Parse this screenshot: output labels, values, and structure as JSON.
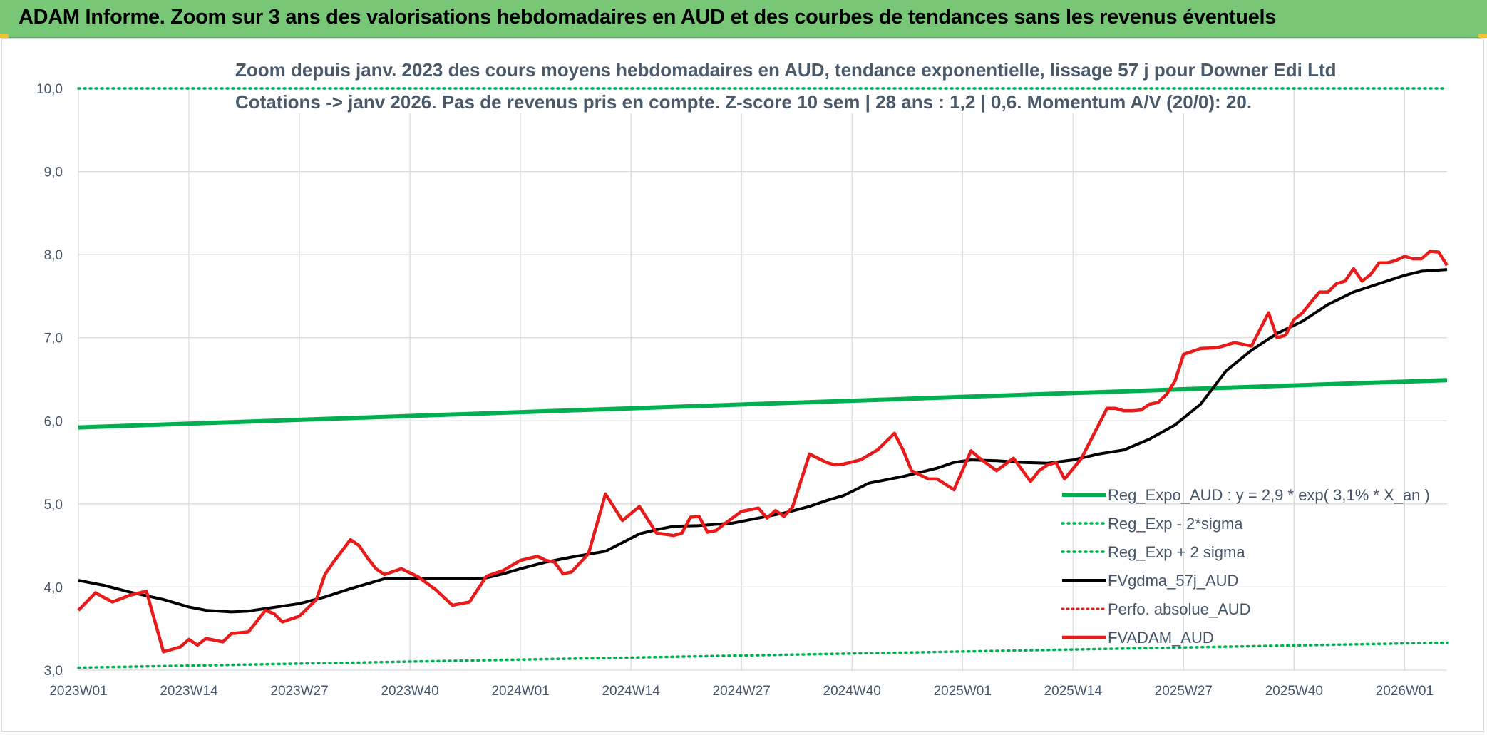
{
  "header": {
    "title": "ADAM Informe. Zoom sur 3 ans des valorisations hebdomadaires en AUD et des courbes de tendances sans les revenus éventuels"
  },
  "colors": {
    "header_bg": "#77c777",
    "reg_expo": "#00b050",
    "fvgdma": "#000000",
    "fvadam": "#e81a1a",
    "perfo": "#e81a1a"
  },
  "chart_data": {
    "type": "line",
    "title": "Zoom depuis janv. 2023 des cours moyens hebdomadaires en AUD, tendance exponentielle, lissage 57 j pour Downer Edi Ltd",
    "subtitle": "Cotations -> janv 2026. Pas de revenus pris en compte. Z-score 10 sem | 28 ans : 1,2 | 0,6. Momentum A/V (20/0): 20.",
    "ylim": [
      3,
      10
    ],
    "y_ticks": [
      "3,0",
      "4,0",
      "5,0",
      "6,0",
      "7,0",
      "8,0",
      "9,0",
      "10,0"
    ],
    "x_ticks": [
      "2023W01",
      "2023W14",
      "2023W27",
      "2023W40",
      "2024W01",
      "2024W14",
      "2024W27",
      "2024W40",
      "2025W01",
      "2025W14",
      "2025W27",
      "2025W40",
      "2026W01"
    ],
    "x_range_weeks": [
      0,
      161
    ],
    "grid": true,
    "legend_position": "bottom-right",
    "series": [
      {
        "name": "Reg_Expo_AUD : y = 2,9 * exp( 3,1% *  X_an )",
        "style": "solid-thick",
        "x": [
          0,
          161
        ],
        "values": [
          5.92,
          6.49
        ]
      },
      {
        "name": "Reg_Exp - 2*sigma",
        "style": "dotted",
        "x": [
          0,
          161
        ],
        "values": [
          3.03,
          3.33
        ]
      },
      {
        "name": "Reg_Exp + 2 sigma",
        "style": "dotted",
        "x": [
          0,
          161
        ],
        "values": [
          10.0,
          10.0
        ]
      },
      {
        "name": "FVgdma_57j_AUD",
        "style": "solid",
        "x": [
          0,
          3,
          6,
          10,
          13,
          15,
          18,
          20,
          22,
          24,
          26,
          29,
          32,
          36,
          40,
          44,
          46,
          48,
          50,
          52,
          55,
          58,
          62,
          66,
          68,
          70,
          73,
          77,
          80,
          83,
          86,
          88,
          90,
          93,
          97,
          101,
          103,
          105,
          108,
          111,
          114,
          117,
          120,
          123,
          126,
          129,
          132,
          135,
          138,
          141,
          144,
          147,
          150,
          153,
          156,
          158,
          161
        ],
        "values": [
          4.08,
          4.02,
          3.94,
          3.85,
          3.76,
          3.72,
          3.7,
          3.71,
          3.74,
          3.77,
          3.8,
          3.88,
          3.98,
          4.1,
          4.1,
          4.1,
          4.1,
          4.11,
          4.16,
          4.22,
          4.3,
          4.36,
          4.43,
          4.64,
          4.69,
          4.73,
          4.74,
          4.77,
          4.83,
          4.89,
          4.97,
          5.04,
          5.1,
          5.25,
          5.33,
          5.43,
          5.5,
          5.53,
          5.52,
          5.5,
          5.49,
          5.53,
          5.6,
          5.65,
          5.78,
          5.95,
          6.2,
          6.6,
          6.85,
          7.05,
          7.2,
          7.4,
          7.55,
          7.65,
          7.75,
          7.8,
          7.82
        ]
      },
      {
        "name": "Perfo. absolue_AUD",
        "style": "dotted",
        "x": [],
        "values": []
      },
      {
        "name": "FVADAM_AUD",
        "style": "solid-thick",
        "x": [
          0,
          2,
          4,
          6,
          8,
          10,
          12,
          13,
          14,
          15,
          16,
          17,
          18,
          20,
          22,
          23,
          24,
          26,
          28,
          29,
          30,
          32,
          33,
          34,
          35,
          36,
          38,
          40,
          42,
          44,
          45,
          46,
          48,
          50,
          52,
          54,
          55,
          56,
          57,
          58,
          60,
          62,
          64,
          66,
          68,
          70,
          71,
          72,
          73,
          74,
          75,
          76,
          78,
          80,
          81,
          82,
          83,
          84,
          86,
          88,
          89,
          90,
          92,
          94,
          96,
          97,
          98,
          99,
          100,
          101,
          103,
          105,
          106,
          108,
          110,
          112,
          113,
          114,
          115,
          116,
          118,
          120,
          121,
          122,
          123,
          124,
          125,
          126,
          127,
          128,
          129,
          130,
          132,
          134,
          136,
          138,
          140,
          141,
          142,
          143,
          144,
          145,
          146,
          147,
          148,
          149,
          150,
          151,
          152,
          153,
          154,
          155,
          156,
          157,
          158,
          159,
          160,
          161
        ],
        "values": [
          3.72,
          3.93,
          3.82,
          3.9,
          3.95,
          3.22,
          3.28,
          3.37,
          3.3,
          3.38,
          3.36,
          3.34,
          3.44,
          3.46,
          3.72,
          3.68,
          3.58,
          3.65,
          3.85,
          4.15,
          4.3,
          4.57,
          4.5,
          4.35,
          4.22,
          4.15,
          4.22,
          4.12,
          3.97,
          3.78,
          3.8,
          3.82,
          4.13,
          4.2,
          4.32,
          4.37,
          4.32,
          4.3,
          4.16,
          4.18,
          4.4,
          5.12,
          4.8,
          4.97,
          4.65,
          4.62,
          4.65,
          4.84,
          4.85,
          4.66,
          4.68,
          4.76,
          4.91,
          4.95,
          4.83,
          4.92,
          4.85,
          4.96,
          5.6,
          5.5,
          5.47,
          5.48,
          5.53,
          5.65,
          5.85,
          5.65,
          5.4,
          5.35,
          5.3,
          5.3,
          5.17,
          5.64,
          5.55,
          5.4,
          5.55,
          5.27,
          5.4,
          5.47,
          5.5,
          5.3,
          5.55,
          5.95,
          6.15,
          6.15,
          6.12,
          6.12,
          6.13,
          6.2,
          6.22,
          6.32,
          6.48,
          6.8,
          6.87,
          6.88,
          6.94,
          6.9,
          7.3,
          7.0,
          7.03,
          7.22,
          7.3,
          7.43,
          7.55,
          7.55,
          7.65,
          7.68,
          7.83,
          7.68,
          7.76,
          7.9,
          7.9,
          7.93,
          7.98,
          7.95,
          7.95,
          8.04,
          8.03,
          7.87
        ]
      }
    ]
  }
}
